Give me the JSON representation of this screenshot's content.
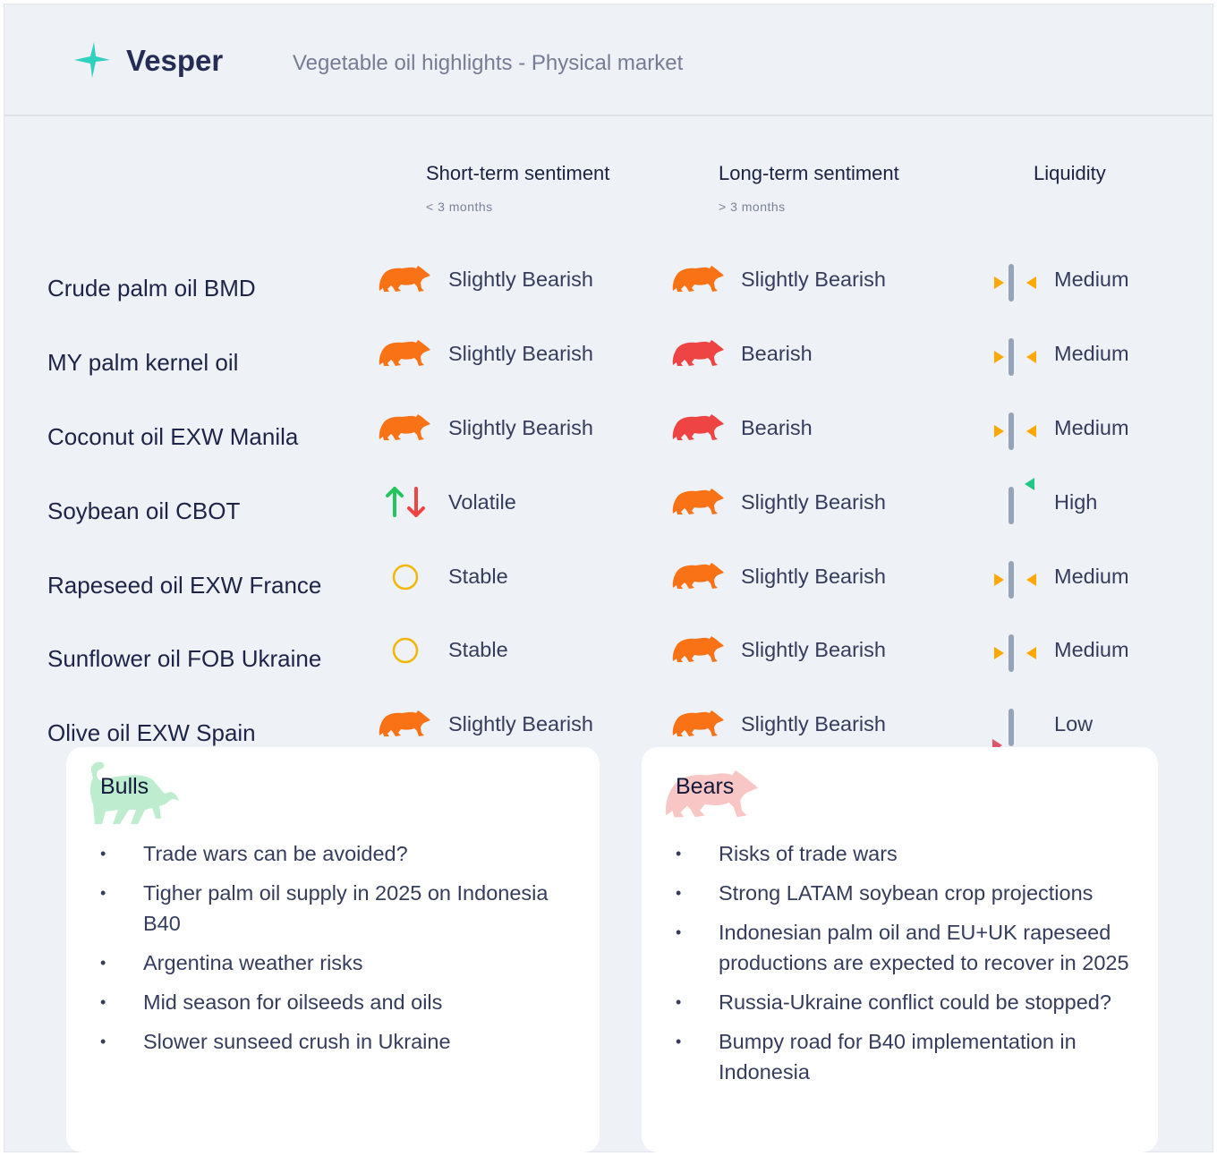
{
  "header": {
    "brand": "Vesper",
    "subtitle": "Vegetable oil highlights - Physical market"
  },
  "columns": {
    "short": {
      "label": "Short-term sentiment",
      "sub": "< 3 months"
    },
    "long": {
      "label": "Long-term sentiment",
      "sub": "> 3 months"
    },
    "liquidity": {
      "label": "Liquidity"
    }
  },
  "colors": {
    "slightly_bearish": "#f97316",
    "bearish": "#ef4444",
    "stable": "#f2b705",
    "up": "#22c55e",
    "down": "#ef4444",
    "medium": "#fea800",
    "high": "#22c984",
    "low": "#e0556a"
  },
  "rows": [
    {
      "name": "Crude palm oil BMD",
      "short": "Slightly Bearish",
      "short_icon": "bear-orange",
      "long": "Slightly Bearish",
      "long_icon": "bear-orange",
      "liquidity": "Medium"
    },
    {
      "name": "MY palm kernel oil",
      "short": "Slightly Bearish",
      "short_icon": "bear-orange",
      "long": "Bearish",
      "long_icon": "bear-red",
      "liquidity": "Medium"
    },
    {
      "name": "Coconut oil EXW Manila",
      "short": "Slightly Bearish",
      "short_icon": "bear-orange",
      "long": "Bearish",
      "long_icon": "bear-red",
      "liquidity": "Medium"
    },
    {
      "name": "Soybean oil CBOT",
      "short": "Volatile",
      "short_icon": "up-down-arrows",
      "long": "Slightly Bearish",
      "long_icon": "bear-orange",
      "liquidity": "High"
    },
    {
      "name": "Rapeseed oil EXW France",
      "short": "Stable",
      "short_icon": "circle",
      "long": "Slightly Bearish",
      "long_icon": "bear-orange",
      "liquidity": "Medium"
    },
    {
      "name": "Sunflower oil FOB Ukraine",
      "short": "Stable",
      "short_icon": "circle",
      "long": "Slightly Bearish",
      "long_icon": "bear-orange",
      "liquidity": "Medium"
    },
    {
      "name": "Olive oil EXW Spain",
      "short": "Slightly Bearish",
      "short_icon": "bear-orange",
      "long": "Slightly Bearish",
      "long_icon": "bear-orange",
      "liquidity": "Low"
    }
  ],
  "bulls": {
    "title": "Bulls",
    "items": [
      "Trade wars can be avoided?",
      "Tigher palm oil supply in 2025 on Indonesia B40",
      "Argentina weather risks",
      "Mid season for oilseeds and oils",
      "Slower sunseed crush in Ukraine"
    ]
  },
  "bears": {
    "title": "Bears",
    "items": [
      "Risks of trade wars",
      "Strong LATAM soybean crop projections",
      "Indonesian palm oil and EU+UK rapeseed productions are expected to recover in 2025",
      "Russia-Ukraine conflict could be stopped?",
      "Bumpy road for B40 implementation in Indonesia"
    ]
  }
}
